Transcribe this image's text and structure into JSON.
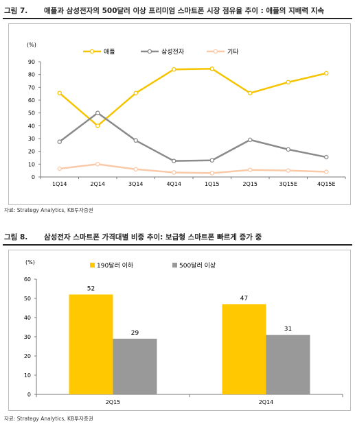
{
  "figures": [
    {
      "number": "그림 7.",
      "title": "애플과 삼성전자의 500달러 이상 프리미엄 스마트폰 시장 점유율 추이 : 애플의 지배력 지속",
      "source": "자료: Strategy Analytics, KB투자증권"
    },
    {
      "number": "그림 8.",
      "title": "삼성전자 스마트폰 가격대별 비중 추이: 보급형 스마트폰 빠르게 증가 중",
      "source": "자료: Strategy Analytics, KB투자증권"
    }
  ],
  "chart_data": [
    {
      "type": "line",
      "unit_label": "(%)",
      "categories": [
        "1Q14",
        "2Q14",
        "3Q14",
        "4Q14",
        "1Q15",
        "2Q15",
        "3Q15E",
        "4Q15E"
      ],
      "series": [
        {
          "name": "애플",
          "color": "#f5c400",
          "values": [
            65.5,
            40,
            65.5,
            84,
            84.5,
            65.5,
            74,
            81
          ]
        },
        {
          "name": "삼성전자",
          "color": "#8a8a8a",
          "values": [
            27.5,
            50,
            28.5,
            12.5,
            13,
            29,
            21.5,
            15.5
          ]
        },
        {
          "name": "기타",
          "color": "#f9c9a8",
          "values": [
            6.5,
            10,
            6,
            3.5,
            3,
            5.5,
            5,
            4
          ]
        }
      ],
      "ylim": [
        0,
        90
      ],
      "yticks": [
        0,
        10,
        20,
        30,
        40,
        50,
        60,
        70,
        80,
        90
      ],
      "legend_position": "top",
      "grid": false
    },
    {
      "type": "bar",
      "unit_label": "(%)",
      "categories": [
        "2Q15",
        "2Q14"
      ],
      "series": [
        {
          "name": "190달러 이하",
          "color": "#ffc800",
          "values": [
            52,
            47
          ]
        },
        {
          "name": "500달러 이상",
          "color": "#999999",
          "values": [
            29,
            31
          ]
        }
      ],
      "ylim": [
        0,
        60
      ],
      "yticks": [
        0,
        10,
        20,
        30,
        40,
        50,
        60
      ],
      "legend_position": "top",
      "grid": false,
      "data_labels": true
    }
  ]
}
